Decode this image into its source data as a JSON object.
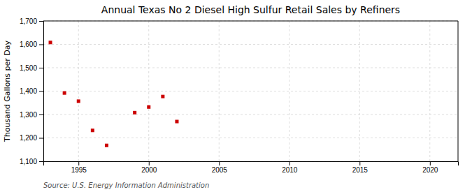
{
  "chart_data": {
    "type": "scatter",
    "title": "Annual Texas No 2 Diesel High Sulfur Retail Sales by Refiners",
    "y_label": "Thousand Gallons per Day",
    "annotation": "Source: U.S. Energy Information Administration",
    "x": [
      1993,
      1994,
      1995,
      1996,
      1997,
      1999,
      2000,
      2001,
      2002
    ],
    "values": [
      1608,
      1392,
      1357,
      1232,
      1168,
      1308,
      1332,
      1377,
      1270
    ],
    "color": "#cc0000",
    "marker": "square",
    "grid": true,
    "xlim": [
      1992.5,
      2022
    ],
    "ylim": [
      1100,
      1700
    ],
    "xticks": [
      1995,
      2000,
      2005,
      2010,
      2015,
      2020
    ],
    "yticks": [
      {
        "value": 1100,
        "label": "1,100"
      },
      {
        "value": 1200,
        "label": "1,200"
      },
      {
        "value": 1300,
        "label": "1,300"
      },
      {
        "value": 1400,
        "label": "1,400"
      },
      {
        "value": 1500,
        "label": "1,500"
      },
      {
        "value": 1600,
        "label": "1,600"
      },
      {
        "value": 1700,
        "label": "1,700"
      }
    ]
  }
}
